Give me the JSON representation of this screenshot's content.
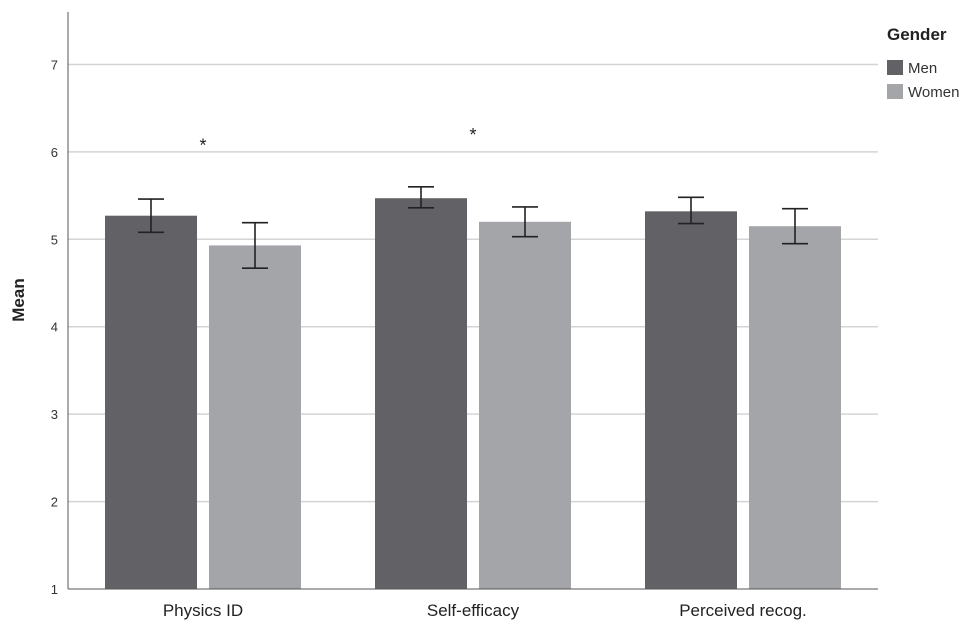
{
  "chart_data": {
    "type": "bar",
    "title": "",
    "xlabel": "",
    "ylabel": "Mean",
    "ylim": [
      1,
      7.6
    ],
    "yticks": [
      1,
      2,
      3,
      4,
      5,
      6,
      7
    ],
    "grid": true,
    "categories": [
      "Physics ID",
      "Self-efficacy",
      "Perceived recog."
    ],
    "legend": {
      "title": "Gender",
      "position": "top-right"
    },
    "series": [
      {
        "name": "Men",
        "color": "#626266",
        "values": [
          5.27,
          5.47,
          5.32
        ],
        "error_low": [
          5.08,
          5.36,
          5.18
        ],
        "error_high": [
          5.46,
          5.6,
          5.48
        ]
      },
      {
        "name": "Women",
        "color": "#a4a5a9",
        "values": [
          4.93,
          5.2,
          5.15
        ],
        "error_low": [
          4.67,
          5.03,
          4.95
        ],
        "error_high": [
          5.19,
          5.37,
          5.35
        ]
      }
    ],
    "annotations": [
      {
        "category_index": 0,
        "text": "*",
        "y": 6.12
      },
      {
        "category_index": 1,
        "text": "*",
        "y": 6.24
      }
    ]
  }
}
